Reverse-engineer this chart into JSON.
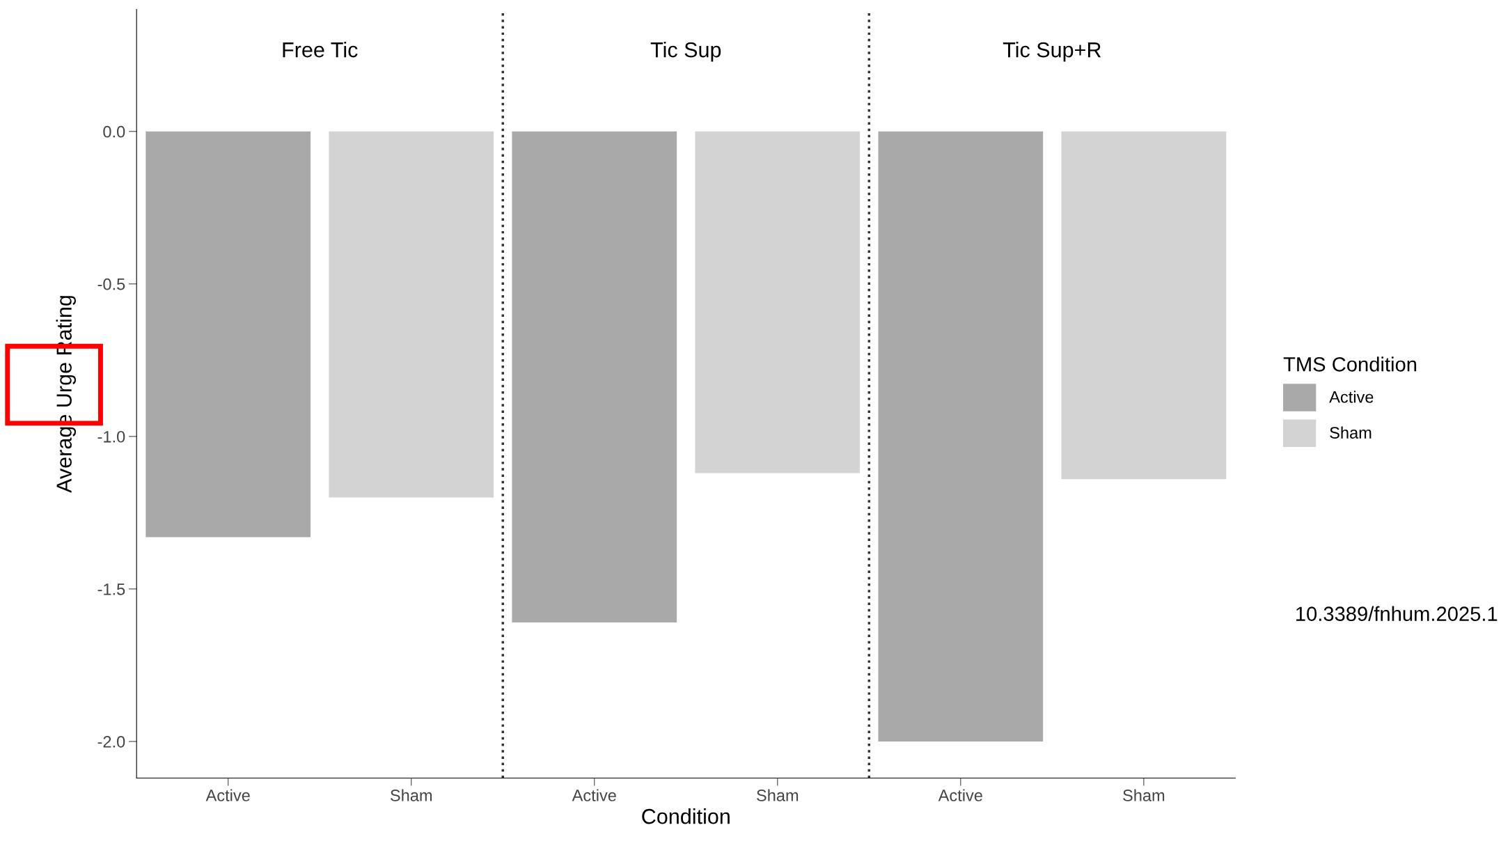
{
  "chart_data": {
    "type": "bar",
    "xlabel": "Condition",
    "ylabel": "Average Urge Rating",
    "legend_title": "TMS Condition",
    "categories": [
      "Active",
      "Sham",
      "Active",
      "Sham",
      "Active",
      "Sham"
    ],
    "series": [
      {
        "name": "Active",
        "color": "#a9a9a9",
        "values": [
          -1.33,
          null,
          -1.61,
          null,
          -2.0,
          null
        ]
      },
      {
        "name": "Sham",
        "color": "#d3d3d3",
        "values": [
          null,
          -1.2,
          null,
          -1.12,
          null,
          -1.14
        ]
      }
    ],
    "ylim": [
      -2.12,
      0.4
    ],
    "yticks": [
      {
        "value": 0,
        "label": "0.0"
      },
      {
        "value": -0.5,
        "label": "-0.5"
      },
      {
        "value": -1.0,
        "label": "-1.0"
      },
      {
        "value": -1.5,
        "label": "-1.5"
      },
      {
        "value": -2.0,
        "label": "-2.0"
      }
    ],
    "annotations": [
      "Free Tic",
      "Tic Sup",
      "Tic Sup+R",
      "10.3389/fnhum.2025.1"
    ],
    "grid": false,
    "legend": "right"
  }
}
